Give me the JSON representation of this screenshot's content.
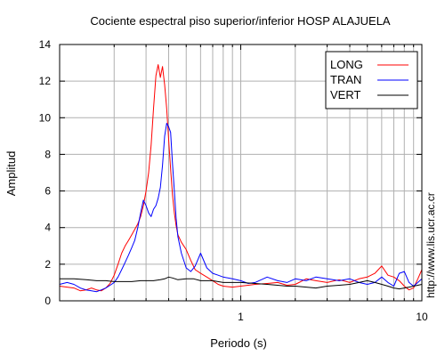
{
  "chart_data": {
    "type": "line",
    "title": "Cociente espectral piso superior/inferior  HOSP ALAJUELA",
    "xlabel": "Periodo (s)",
    "ylabel": "Amplitud",
    "xscale": "log",
    "xlim": [
      0.1,
      10
    ],
    "ylim": [
      0,
      14
    ],
    "xticks": [
      {
        "v": 1,
        "label": "1"
      },
      {
        "v": 10,
        "label": "10"
      }
    ],
    "yticks": [
      {
        "v": 0,
        "label": "0"
      },
      {
        "v": 2,
        "label": "2"
      },
      {
        "v": 4,
        "label": "4"
      },
      {
        "v": 6,
        "label": "6"
      },
      {
        "v": 8,
        "label": "8"
      },
      {
        "v": 10,
        "label": "10"
      },
      {
        "v": 12,
        "label": "12"
      },
      {
        "v": 14,
        "label": "14"
      }
    ],
    "grid": true,
    "legend_position": "top-right",
    "side_label": "http://www.lis.ucr.ac.cr",
    "series": [
      {
        "name": "LONG",
        "color": "#ff0000",
        "points": [
          [
            0.1,
            0.8
          ],
          [
            0.11,
            0.75
          ],
          [
            0.12,
            0.7
          ],
          [
            0.13,
            0.55
          ],
          [
            0.14,
            0.6
          ],
          [
            0.15,
            0.7
          ],
          [
            0.16,
            0.6
          ],
          [
            0.17,
            0.55
          ],
          [
            0.18,
            0.7
          ],
          [
            0.19,
            0.95
          ],
          [
            0.2,
            1.4
          ],
          [
            0.21,
            2.0
          ],
          [
            0.22,
            2.6
          ],
          [
            0.23,
            3.0
          ],
          [
            0.24,
            3.3
          ],
          [
            0.25,
            3.6
          ],
          [
            0.26,
            3.9
          ],
          [
            0.27,
            4.2
          ],
          [
            0.28,
            4.6
          ],
          [
            0.29,
            5.2
          ],
          [
            0.3,
            6.0
          ],
          [
            0.31,
            7.0
          ],
          [
            0.32,
            8.5
          ],
          [
            0.33,
            10.5
          ],
          [
            0.34,
            12.3
          ],
          [
            0.35,
            12.9
          ],
          [
            0.36,
            12.2
          ],
          [
            0.37,
            12.8
          ],
          [
            0.38,
            11.8
          ],
          [
            0.39,
            10.5
          ],
          [
            0.4,
            8.8
          ],
          [
            0.41,
            7.2
          ],
          [
            0.42,
            5.8
          ],
          [
            0.43,
            4.8
          ],
          [
            0.44,
            4.1
          ],
          [
            0.45,
            3.6
          ],
          [
            0.47,
            3.2
          ],
          [
            0.5,
            2.8
          ],
          [
            0.53,
            2.2
          ],
          [
            0.56,
            1.7
          ],
          [
            0.6,
            1.5
          ],
          [
            0.65,
            1.3
          ],
          [
            0.7,
            1.1
          ],
          [
            0.75,
            0.9
          ],
          [
            0.8,
            0.8
          ],
          [
            0.9,
            0.75
          ],
          [
            1.0,
            0.8
          ],
          [
            1.1,
            0.85
          ],
          [
            1.2,
            0.9
          ],
          [
            1.4,
            0.95
          ],
          [
            1.6,
            1.0
          ],
          [
            1.8,
            0.85
          ],
          [
            2.0,
            0.9
          ],
          [
            2.3,
            1.2
          ],
          [
            2.6,
            1.1
          ],
          [
            3.0,
            1.0
          ],
          [
            3.5,
            1.15
          ],
          [
            4.0,
            1.0
          ],
          [
            4.5,
            1.2
          ],
          [
            5.0,
            1.3
          ],
          [
            5.5,
            1.5
          ],
          [
            6.0,
            1.9
          ],
          [
            6.5,
            1.4
          ],
          [
            7.0,
            1.3
          ],
          [
            7.5,
            1.1
          ],
          [
            8.0,
            0.8
          ],
          [
            8.5,
            0.6
          ],
          [
            9.0,
            0.7
          ],
          [
            9.5,
            1.2
          ],
          [
            10.0,
            1.7
          ]
        ]
      },
      {
        "name": "TRAN",
        "color": "#0000ff",
        "points": [
          [
            0.1,
            0.9
          ],
          [
            0.11,
            1.0
          ],
          [
            0.12,
            0.9
          ],
          [
            0.13,
            0.7
          ],
          [
            0.14,
            0.6
          ],
          [
            0.15,
            0.55
          ],
          [
            0.16,
            0.5
          ],
          [
            0.17,
            0.6
          ],
          [
            0.18,
            0.7
          ],
          [
            0.19,
            0.85
          ],
          [
            0.2,
            1.0
          ],
          [
            0.21,
            1.3
          ],
          [
            0.22,
            1.7
          ],
          [
            0.23,
            2.1
          ],
          [
            0.24,
            2.5
          ],
          [
            0.25,
            2.9
          ],
          [
            0.26,
            3.3
          ],
          [
            0.27,
            4.0
          ],
          [
            0.28,
            4.8
          ],
          [
            0.29,
            5.5
          ],
          [
            0.3,
            5.2
          ],
          [
            0.31,
            4.8
          ],
          [
            0.32,
            4.6
          ],
          [
            0.33,
            5.0
          ],
          [
            0.34,
            5.2
          ],
          [
            0.35,
            5.6
          ],
          [
            0.36,
            6.2
          ],
          [
            0.37,
            7.4
          ],
          [
            0.38,
            9.0
          ],
          [
            0.39,
            9.7
          ],
          [
            0.4,
            9.5
          ],
          [
            0.41,
            9.2
          ],
          [
            0.42,
            7.5
          ],
          [
            0.43,
            6.0
          ],
          [
            0.44,
            4.5
          ],
          [
            0.45,
            3.5
          ],
          [
            0.47,
            2.6
          ],
          [
            0.5,
            1.8
          ],
          [
            0.53,
            1.6
          ],
          [
            0.56,
            1.9
          ],
          [
            0.6,
            2.6
          ],
          [
            0.65,
            1.8
          ],
          [
            0.7,
            1.5
          ],
          [
            0.75,
            1.4
          ],
          [
            0.8,
            1.3
          ],
          [
            0.9,
            1.2
          ],
          [
            1.0,
            1.1
          ],
          [
            1.1,
            0.95
          ],
          [
            1.2,
            1.0
          ],
          [
            1.4,
            1.3
          ],
          [
            1.6,
            1.1
          ],
          [
            1.8,
            1.0
          ],
          [
            2.0,
            1.2
          ],
          [
            2.3,
            1.1
          ],
          [
            2.6,
            1.3
          ],
          [
            3.0,
            1.2
          ],
          [
            3.5,
            1.1
          ],
          [
            4.0,
            1.2
          ],
          [
            4.5,
            1.0
          ],
          [
            5.0,
            0.9
          ],
          [
            5.5,
            1.0
          ],
          [
            6.0,
            1.3
          ],
          [
            6.5,
            1.0
          ],
          [
            7.0,
            0.8
          ],
          [
            7.5,
            1.5
          ],
          [
            8.0,
            1.6
          ],
          [
            8.5,
            1.0
          ],
          [
            9.0,
            0.8
          ],
          [
            9.5,
            1.0
          ],
          [
            10.0,
            1.2
          ]
        ]
      },
      {
        "name": "VERT",
        "color": "#000000",
        "points": [
          [
            0.1,
            1.2
          ],
          [
            0.12,
            1.2
          ],
          [
            0.14,
            1.15
          ],
          [
            0.16,
            1.1
          ],
          [
            0.18,
            1.1
          ],
          [
            0.2,
            1.05
          ],
          [
            0.22,
            1.05
          ],
          [
            0.25,
            1.05
          ],
          [
            0.28,
            1.1
          ],
          [
            0.3,
            1.1
          ],
          [
            0.33,
            1.1
          ],
          [
            0.36,
            1.15
          ],
          [
            0.38,
            1.2
          ],
          [
            0.4,
            1.3
          ],
          [
            0.42,
            1.25
          ],
          [
            0.45,
            1.15
          ],
          [
            0.5,
            1.2
          ],
          [
            0.55,
            1.2
          ],
          [
            0.6,
            1.1
          ],
          [
            0.7,
            1.1
          ],
          [
            0.8,
            1.0
          ],
          [
            0.9,
            1.0
          ],
          [
            1.0,
            1.0
          ],
          [
            1.2,
            0.95
          ],
          [
            1.4,
            0.9
          ],
          [
            1.6,
            0.85
          ],
          [
            1.8,
            0.8
          ],
          [
            2.0,
            0.8
          ],
          [
            2.3,
            0.75
          ],
          [
            2.6,
            0.7
          ],
          [
            3.0,
            0.8
          ],
          [
            3.5,
            0.85
          ],
          [
            4.0,
            0.9
          ],
          [
            4.5,
            1.0
          ],
          [
            5.0,
            1.1
          ],
          [
            5.5,
            1.0
          ],
          [
            6.0,
            0.9
          ],
          [
            6.5,
            0.8
          ],
          [
            7.0,
            0.7
          ],
          [
            7.5,
            0.65
          ],
          [
            8.0,
            0.7
          ],
          [
            8.5,
            0.75
          ],
          [
            9.0,
            0.8
          ],
          [
            9.5,
            0.85
          ],
          [
            10.0,
            0.9
          ]
        ]
      }
    ]
  }
}
